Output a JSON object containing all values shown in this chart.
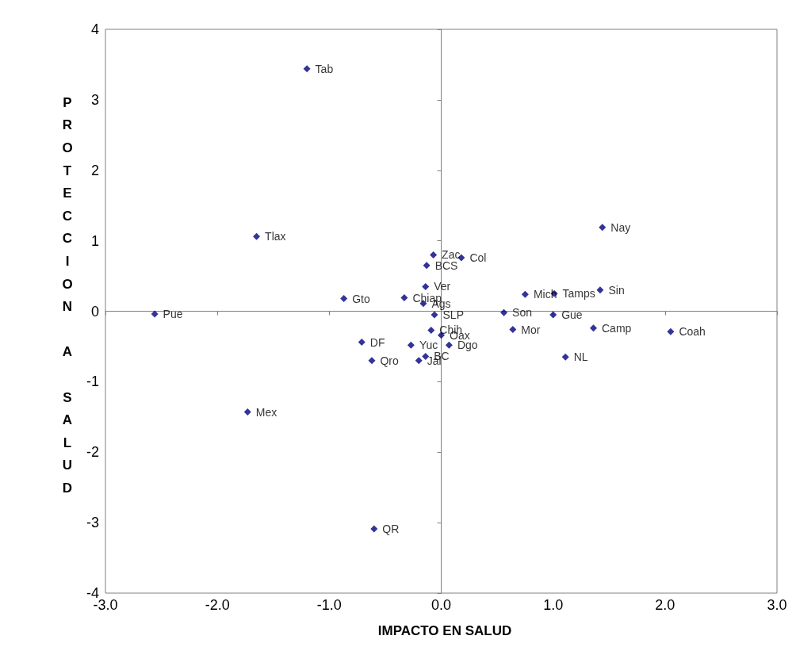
{
  "chart_data": {
    "type": "scatter",
    "xlabel": "IMPACTO EN SALUD",
    "ylabel": "PROTECCION A SALUD",
    "x": [
      -1.2,
      -1.65,
      1.44,
      -0.07,
      0.18,
      -0.13,
      -0.14,
      -0.87,
      -0.33,
      -0.16,
      -0.06,
      0.56,
      0.75,
      1.01,
      1.42,
      1.0,
      -2.56,
      0.64,
      1.36,
      2.05,
      1.11,
      -0.09,
      0.0,
      0.07,
      -0.71,
      -0.27,
      -0.14,
      -0.2,
      -0.62,
      -1.73,
      -0.6
    ],
    "series": [
      {
        "color": "#000080",
        "values": [
          3.44,
          1.06,
          1.19,
          0.8,
          0.76,
          0.65,
          0.35,
          0.18,
          0.19,
          0.11,
          -0.05,
          -0.02,
          0.24,
          0.25,
          0.3,
          -0.05,
          -0.04,
          -0.26,
          -0.24,
          -0.29,
          -0.65,
          -0.27,
          -0.34,
          -0.48,
          -0.44,
          -0.48,
          -0.64,
          -0.7,
          -0.7,
          -1.43,
          -3.09
        ],
        "value_labels": [
          "Tab",
          "Tlax",
          "Nay",
          "Zac",
          "Col",
          "BCS",
          "Ver",
          "Gto",
          "Chiap",
          "Ags",
          "SLP",
          "Son",
          "Mich",
          "Tamps",
          "Sin",
          "Gue",
          "Pue",
          "Mor",
          "Camp",
          "Coah",
          "NL",
          "Chih",
          "Oax",
          "Dgo",
          "DF",
          "Yuc",
          "BC",
          "Jal",
          "Qro",
          "Mex",
          "QR"
        ]
      }
    ],
    "xlim": [
      -3,
      3
    ],
    "xticks": [
      {
        "value": -3,
        "label": "-3.0"
      },
      {
        "value": -2,
        "label": "-2.0"
      },
      {
        "value": -1,
        "label": "-1.0"
      },
      {
        "value": 0,
        "label": "0.0"
      },
      {
        "value": 1,
        "label": "1.0"
      },
      {
        "value": 2,
        "label": "2.0"
      },
      {
        "value": 3,
        "label": "3.0"
      }
    ],
    "ylim": [
      -4,
      4
    ],
    "yticks": [
      -4,
      -3,
      -2,
      -1,
      0,
      1,
      2,
      3,
      4
    ],
    "marker": "diamond"
  }
}
